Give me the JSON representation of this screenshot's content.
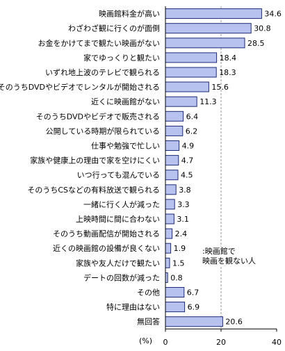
{
  "chart_data": {
    "type": "bar",
    "orientation": "horizontal",
    "categories": [
      "映画館料金が高い",
      "わざわざ観に行くのが面倒",
      "お金をかけてまで観たい映画がない",
      "家でゆっくりと観たい",
      "いずれ地上波のテレビで観られる",
      "そのうちDVDやビデオでレンタルが開始される",
      "近くに映画館がない",
      "そのうちDVDやビデオで販売される",
      "公開している時期が限られている",
      "仕事や勉強で忙しい",
      "家族や健康上の理由で家を空けにくい",
      "いつ行っても混んでいる",
      "そのうちCSなどの有料放送で観られる",
      "一緒に行く人が減った",
      "上映時間に間に合わない",
      "そのうち動画配信が開始される",
      "近くの映画館の設備が良くない",
      "家族や友人だけで観たい",
      "デートの回数が減った",
      "その他",
      "特に理由はない",
      "無回答"
    ],
    "values": [
      34.6,
      30.8,
      28.5,
      18.4,
      18.3,
      15.6,
      11.3,
      6.4,
      6.2,
      4.9,
      4.7,
      4.5,
      3.8,
      3.3,
      3.1,
      2.4,
      1.9,
      1.5,
      0.8,
      6.7,
      6.9,
      20.6
    ],
    "value_labels": [
      "34.6",
      "30.8",
      "28.5",
      "18.4",
      "18.3",
      "15.6",
      "11.3",
      "6.4",
      "6.2",
      "4.9",
      "4.7",
      "4.5",
      "3.8",
      "3.3",
      "3.1",
      "2.4",
      "1.9",
      "1.5",
      "0.8",
      "6.7",
      "6.9",
      "20.6"
    ],
    "xlim": [
      0,
      40
    ],
    "xticks": [
      "0",
      "20",
      "40"
    ],
    "x_unit": "(%)",
    "legend": ":映画館で\n映画を観ない人",
    "legend_placement": "lower-right",
    "grid": "vertical dashed at 20",
    "colors": {
      "bar_fill": "#b7c3ee",
      "bar_stroke": "#1e2a78"
    }
  }
}
